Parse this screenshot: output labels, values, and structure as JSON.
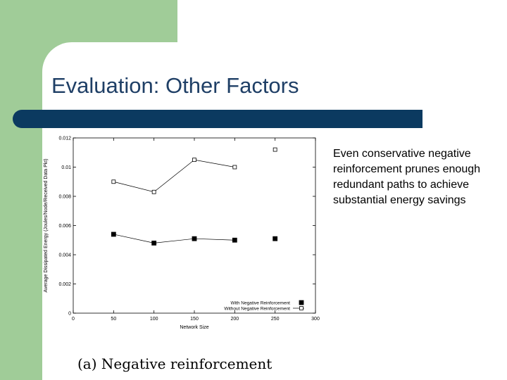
{
  "slide": {
    "title": "Evaluation: Other Factors",
    "body": "Even conservative negative reinforcement prunes enough redundant paths to achieve substantial energy savings",
    "caption": "(a) Negative reinforcement",
    "colors": {
      "accent_green": "#a0cc98",
      "title_bar": "#0b3a60",
      "title_text": "#1f3f66"
    }
  },
  "chart_data": {
    "type": "line",
    "xlabel": "Network Size",
    "ylabel": "Average Dissipated Energy (Joules/Node/Received Data Pkt)",
    "xlim": [
      0,
      300
    ],
    "ylim": [
      0,
      0.012
    ],
    "x_ticks": [
      0,
      50,
      100,
      150,
      200,
      250,
      300
    ],
    "x_tick_labels": [
      "0",
      "50",
      "100",
      "150",
      "200",
      "250",
      "300"
    ],
    "y_ticks": [
      0,
      0.002,
      0.004,
      0.006,
      0.008,
      0.01,
      0.012
    ],
    "y_tick_labels": [
      "0",
      "0.002",
      "0.004",
      "0.006",
      "0.008",
      "0.01",
      "0.012"
    ],
    "grid": false,
    "legend": "bottom-right",
    "series": [
      {
        "name": "With Negative Reinforcement",
        "marker": "filled-square",
        "x": [
          50,
          100,
          150,
          200,
          250
        ],
        "y": [
          0.0054,
          0.0048,
          0.0051,
          0.005,
          0.0051
        ]
      },
      {
        "name": "Without Negative Reinforcement",
        "marker": "open-square",
        "x": [
          50,
          100,
          150,
          200,
          250
        ],
        "y": [
          0.009,
          0.0083,
          0.0105,
          0.01,
          0.0112
        ]
      }
    ]
  }
}
